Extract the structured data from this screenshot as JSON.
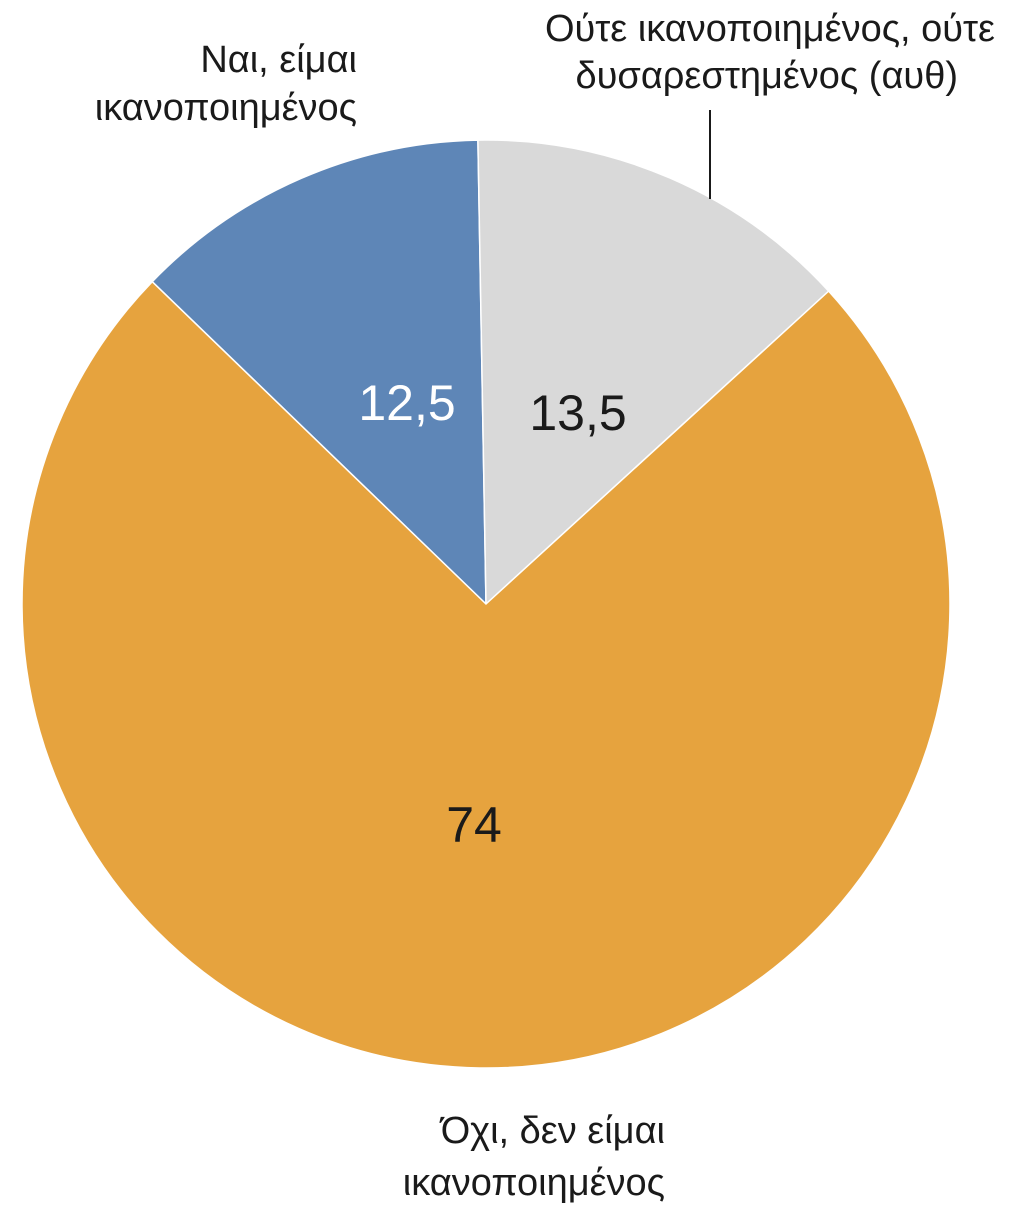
{
  "chart_data": {
    "type": "pie",
    "slices": [
      {
        "category": "Ναι, είμαι ικανοποιημένος",
        "label_lines": [
          "Ναι, είμαι",
          "ικανοποιημένος"
        ],
        "value": 12.5,
        "value_label": "12,5",
        "color": "#5e86b7",
        "value_label_color": "#ffffff"
      },
      {
        "category": "Ούτε ικανοποιημένος, ούτε δυσαρεστημένος (αυθ)",
        "label_lines": [
          "Ούτε ικανοποιημένος, ούτε",
          "δυσαρεστημένος (αυθ)"
        ],
        "value": 13.5,
        "value_label": "13,5",
        "color": "#d9d9d9",
        "value_label_color": "#1a1a1a"
      },
      {
        "category": "Όχι, δεν είμαι ικανοποιημένος",
        "label_lines": [
          "Όχι, δεν είμαι",
          "ικανοποιημένος"
        ],
        "value": 74,
        "value_label": "74",
        "color": "#e6a33e",
        "value_label_color": "#1a1a1a"
      }
    ],
    "legend": "none"
  }
}
